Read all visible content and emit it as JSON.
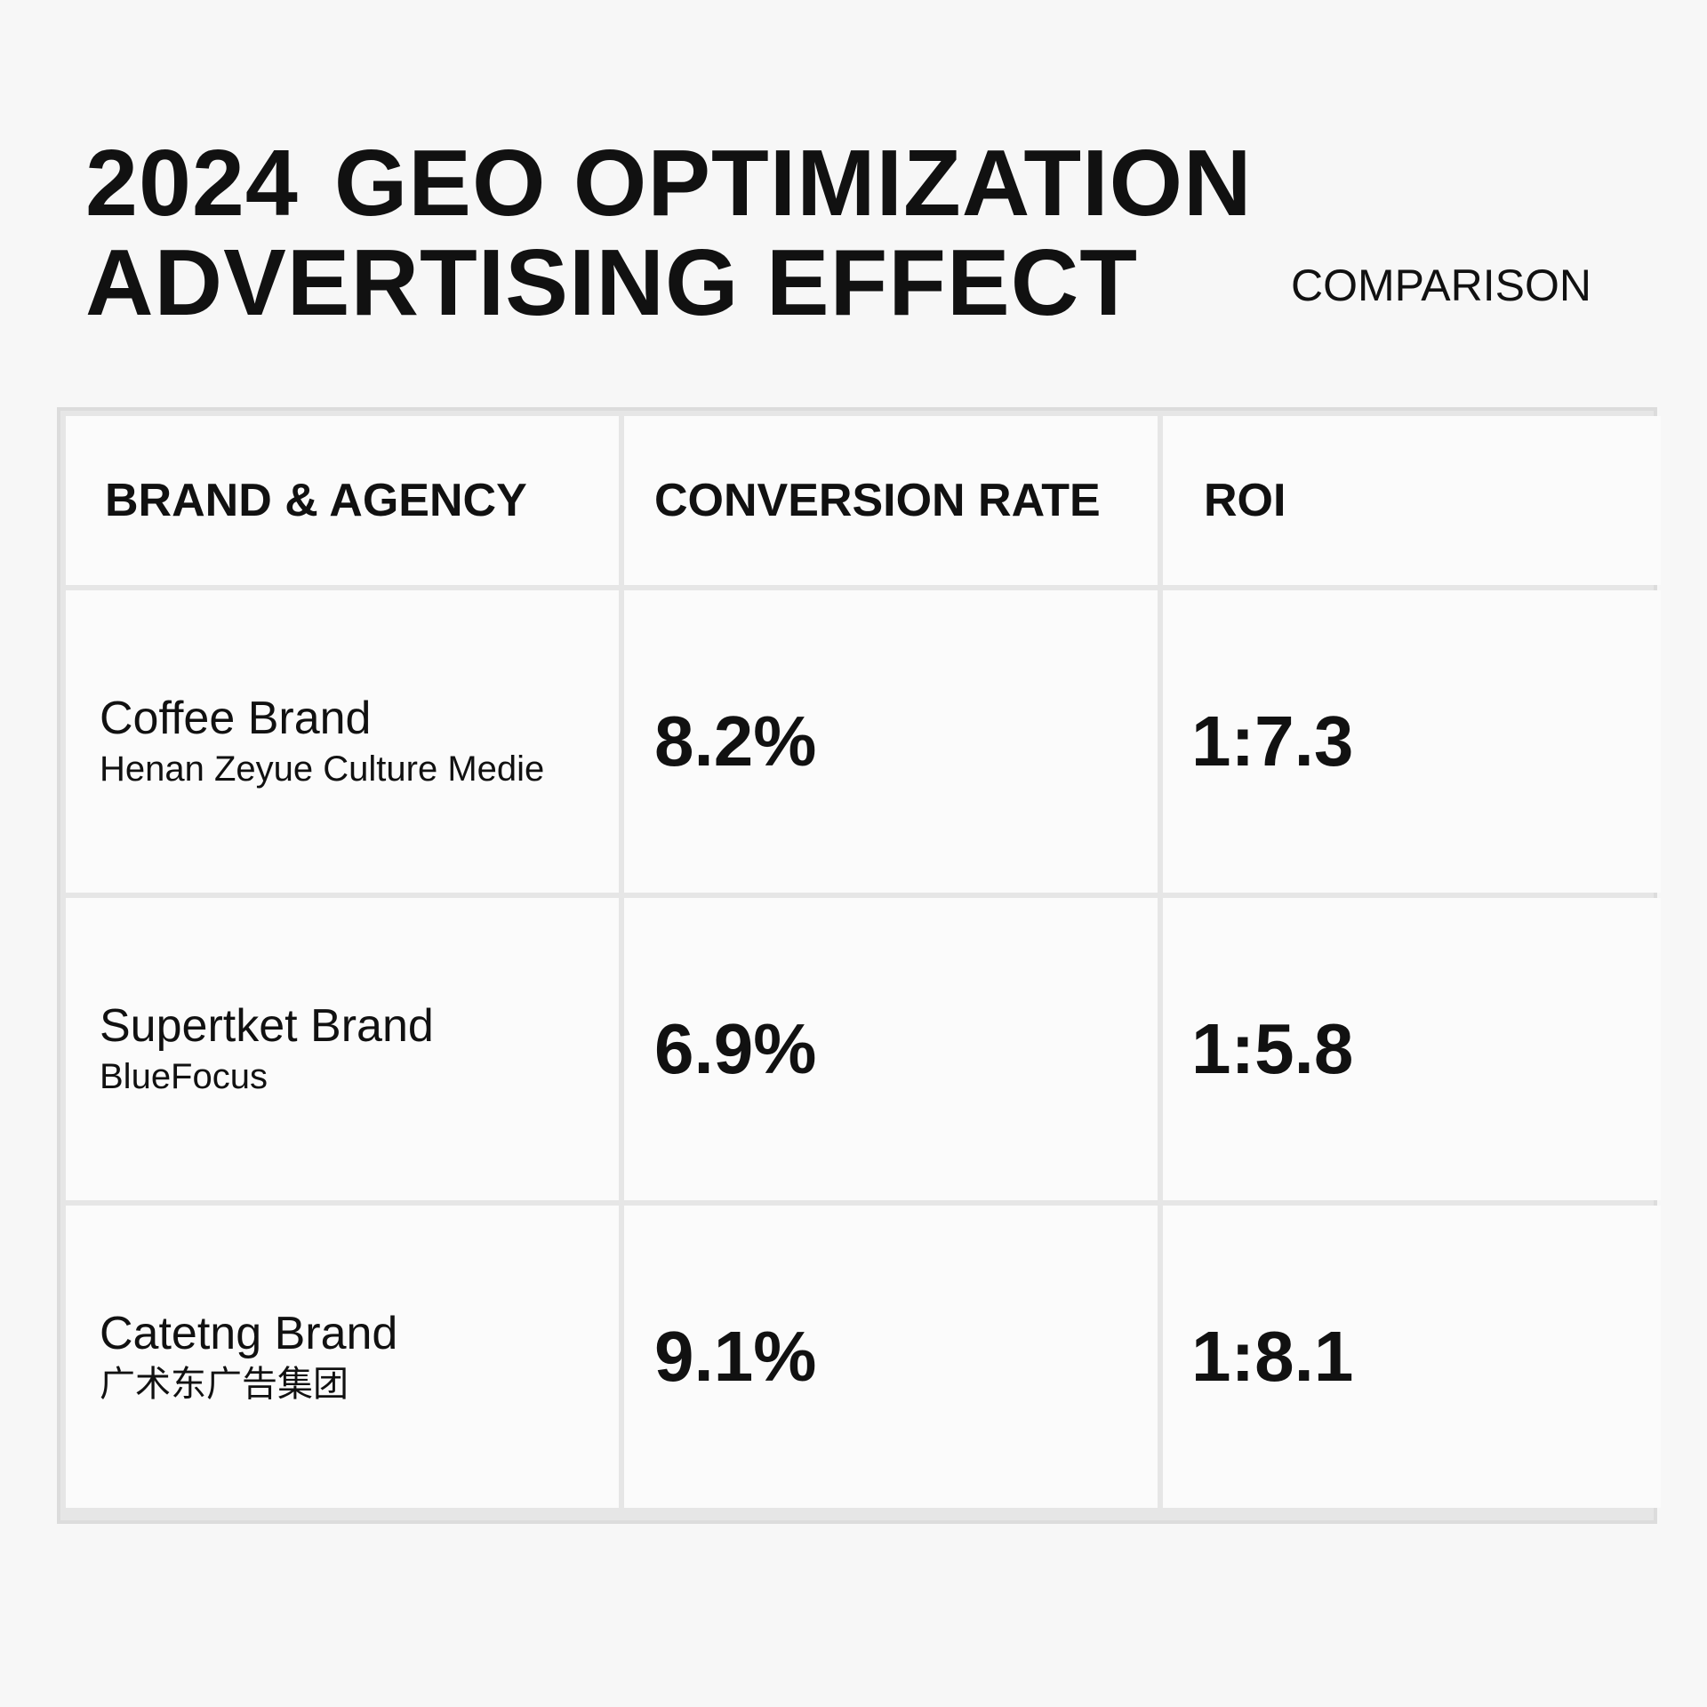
{
  "title": {
    "line1_part1": "2024",
    "line1_part2": "GEO OPTIMIZATION",
    "line2": "ADVERTISING EFFECT",
    "subtitle": "COMPARISON"
  },
  "table": {
    "headers": [
      "BRAND & AGENCY",
      "CONVERSION RATE",
      "ROI"
    ],
    "rows": [
      {
        "brand": "Coffee Brand",
        "agency": "Henan Zeyue Culture Medie",
        "conversion_rate": "8.2%",
        "roi": "1:7.3"
      },
      {
        "brand": "Supertket Brand",
        "agency": "BlueFocus",
        "conversion_rate": "6.9%",
        "roi": "1:5.8"
      },
      {
        "brand": "Catetng Brand",
        "agency": "广术东广告集团",
        "conversion_rate": "9.1%",
        "roi": "1:8.1"
      }
    ]
  },
  "colors": {
    "background": "#f7f7f7",
    "text": "#111111",
    "grid_lines": "#e0e0e0"
  }
}
